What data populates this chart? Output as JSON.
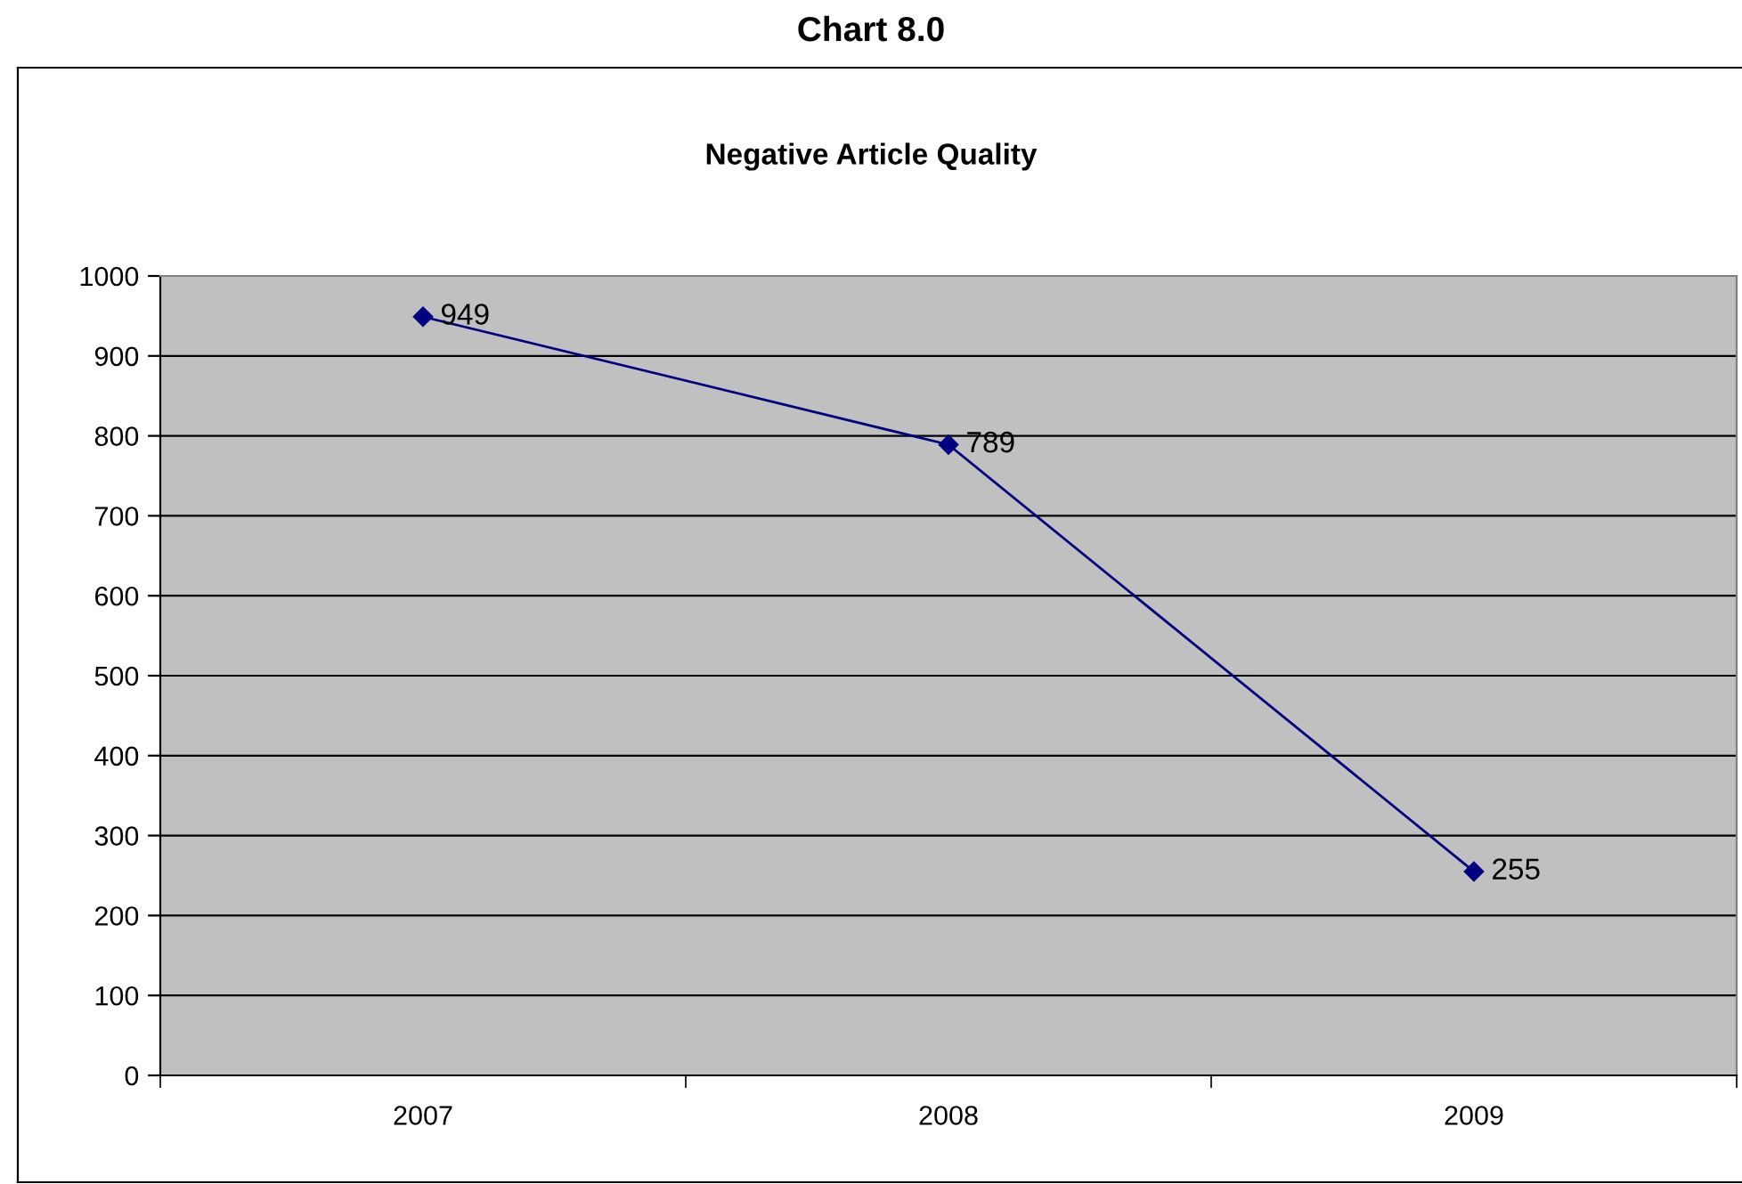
{
  "chart_data": {
    "type": "line",
    "title": "Chart 8.0",
    "subtitle": "Negative Article Quality",
    "categories": [
      "2007",
      "2008",
      "2009"
    ],
    "series": [
      {
        "color": "#000080",
        "values": [
          949,
          789,
          255
        ]
      }
    ],
    "ylim": [
      0,
      1000
    ],
    "yticks": [
      0,
      100,
      200,
      300,
      400,
      500,
      600,
      700,
      800,
      900,
      1000
    ],
    "grid": "y",
    "marker": "diamond",
    "line_style": "solid",
    "data_labels": true,
    "legend": false
  }
}
